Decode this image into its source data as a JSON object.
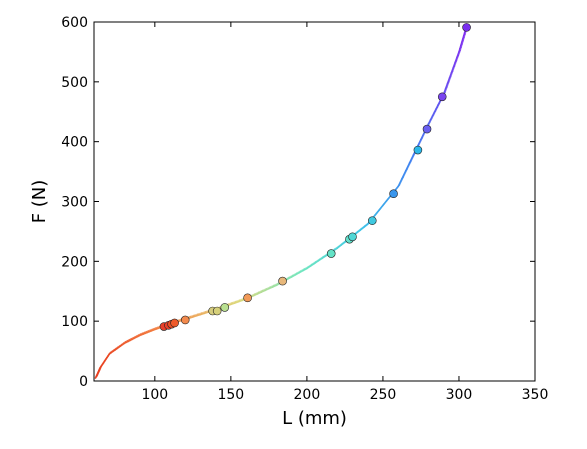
{
  "chart_data": {
    "type": "scatter",
    "xlabel": "L (mm)",
    "ylabel": "F (N)",
    "xlim": [
      60,
      350
    ],
    "ylim": [
      0,
      600
    ],
    "xticks": [
      100,
      150,
      200,
      250,
      300,
      350
    ],
    "yticks": [
      0,
      100,
      200,
      300,
      400,
      500,
      600
    ],
    "grid": false,
    "fit_curve_color_scale": "rainbow (red at low L to violet at high L)",
    "points": [
      {
        "x": 106,
        "y": 91,
        "color": "#e8402a"
      },
      {
        "x": 109,
        "y": 93,
        "color": "#e8402a"
      },
      {
        "x": 111,
        "y": 95,
        "color": "#ee4d23"
      },
      {
        "x": 113,
        "y": 97,
        "color": "#ef5a2a"
      },
      {
        "x": 120,
        "y": 102,
        "color": "#f38a4d"
      },
      {
        "x": 138,
        "y": 117,
        "color": "#d6cd7e"
      },
      {
        "x": 141,
        "y": 117,
        "color": "#d6d07a"
      },
      {
        "x": 146,
        "y": 123,
        "color": "#b9e090"
      },
      {
        "x": 161,
        "y": 139,
        "color": "#f29a58"
      },
      {
        "x": 184,
        "y": 167,
        "color": "#e8b87b"
      },
      {
        "x": 216,
        "y": 213,
        "color": "#64e3c7"
      },
      {
        "x": 228,
        "y": 237,
        "color": "#60e2cc"
      },
      {
        "x": 230,
        "y": 241,
        "color": "#4fd8d6"
      },
      {
        "x": 243,
        "y": 268,
        "color": "#3fc9e0"
      },
      {
        "x": 257,
        "y": 313,
        "color": "#3a96ec"
      },
      {
        "x": 273,
        "y": 386,
        "color": "#2ab8ea"
      },
      {
        "x": 279,
        "y": 421,
        "color": "#6a5ff2"
      },
      {
        "x": 289,
        "y": 475,
        "color": "#7a45f0"
      },
      {
        "x": 305,
        "y": 591,
        "color": "#7a2ef0"
      }
    ],
    "fit_curve": {
      "x": [
        61,
        64,
        70,
        80,
        90,
        100,
        110,
        120,
        140,
        160,
        180,
        200,
        220,
        240,
        260,
        280,
        290,
        300,
        305
      ],
      "y": [
        5,
        22,
        45,
        63,
        76,
        86,
        95,
        103,
        119,
        137,
        160,
        188,
        222,
        262,
        325,
        430,
        480,
        550,
        593
      ]
    }
  }
}
